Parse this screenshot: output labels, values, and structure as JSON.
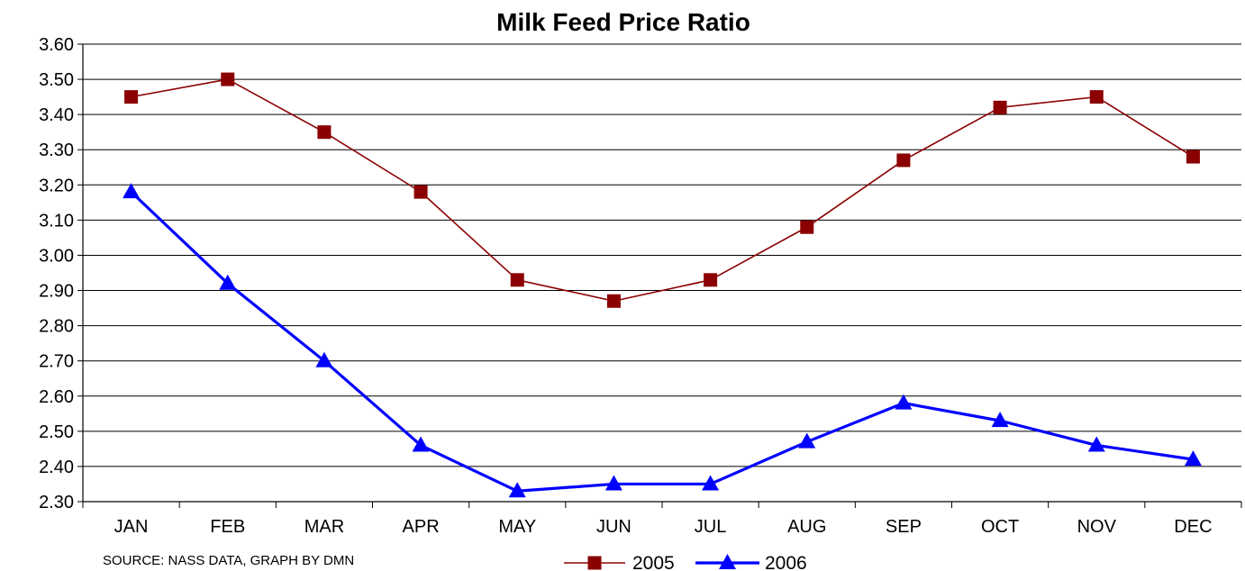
{
  "chart_data": {
    "type": "line",
    "title": "Milk Feed Price Ratio",
    "xlabel": "",
    "ylabel": "",
    "categories": [
      "JAN",
      "FEB",
      "MAR",
      "APR",
      "MAY",
      "JUN",
      "JUL",
      "AUG",
      "SEP",
      "OCT",
      "NOV",
      "DEC"
    ],
    "ylim": [
      2.3,
      3.6
    ],
    "yticks": [
      "3.60",
      "3.50",
      "3.40",
      "3.30",
      "3.20",
      "3.10",
      "3.00",
      "2.90",
      "2.80",
      "2.70",
      "2.60",
      "2.50",
      "2.40",
      "2.30"
    ],
    "grid": true,
    "legend_position": "bottom",
    "series": [
      {
        "name": "2005",
        "color": "#8B0000",
        "marker": "square",
        "values": [
          3.45,
          3.5,
          3.35,
          3.18,
          2.93,
          2.87,
          2.93,
          3.08,
          3.27,
          3.42,
          3.45,
          3.28
        ]
      },
      {
        "name": "2006",
        "color": "#0000FF",
        "marker": "triangle",
        "values": [
          3.18,
          2.92,
          2.7,
          2.46,
          2.33,
          2.35,
          2.35,
          2.47,
          2.58,
          2.53,
          2.46,
          2.42
        ]
      }
    ],
    "source_note": "SOURCE:  NASS DATA, GRAPH BY DMN"
  }
}
